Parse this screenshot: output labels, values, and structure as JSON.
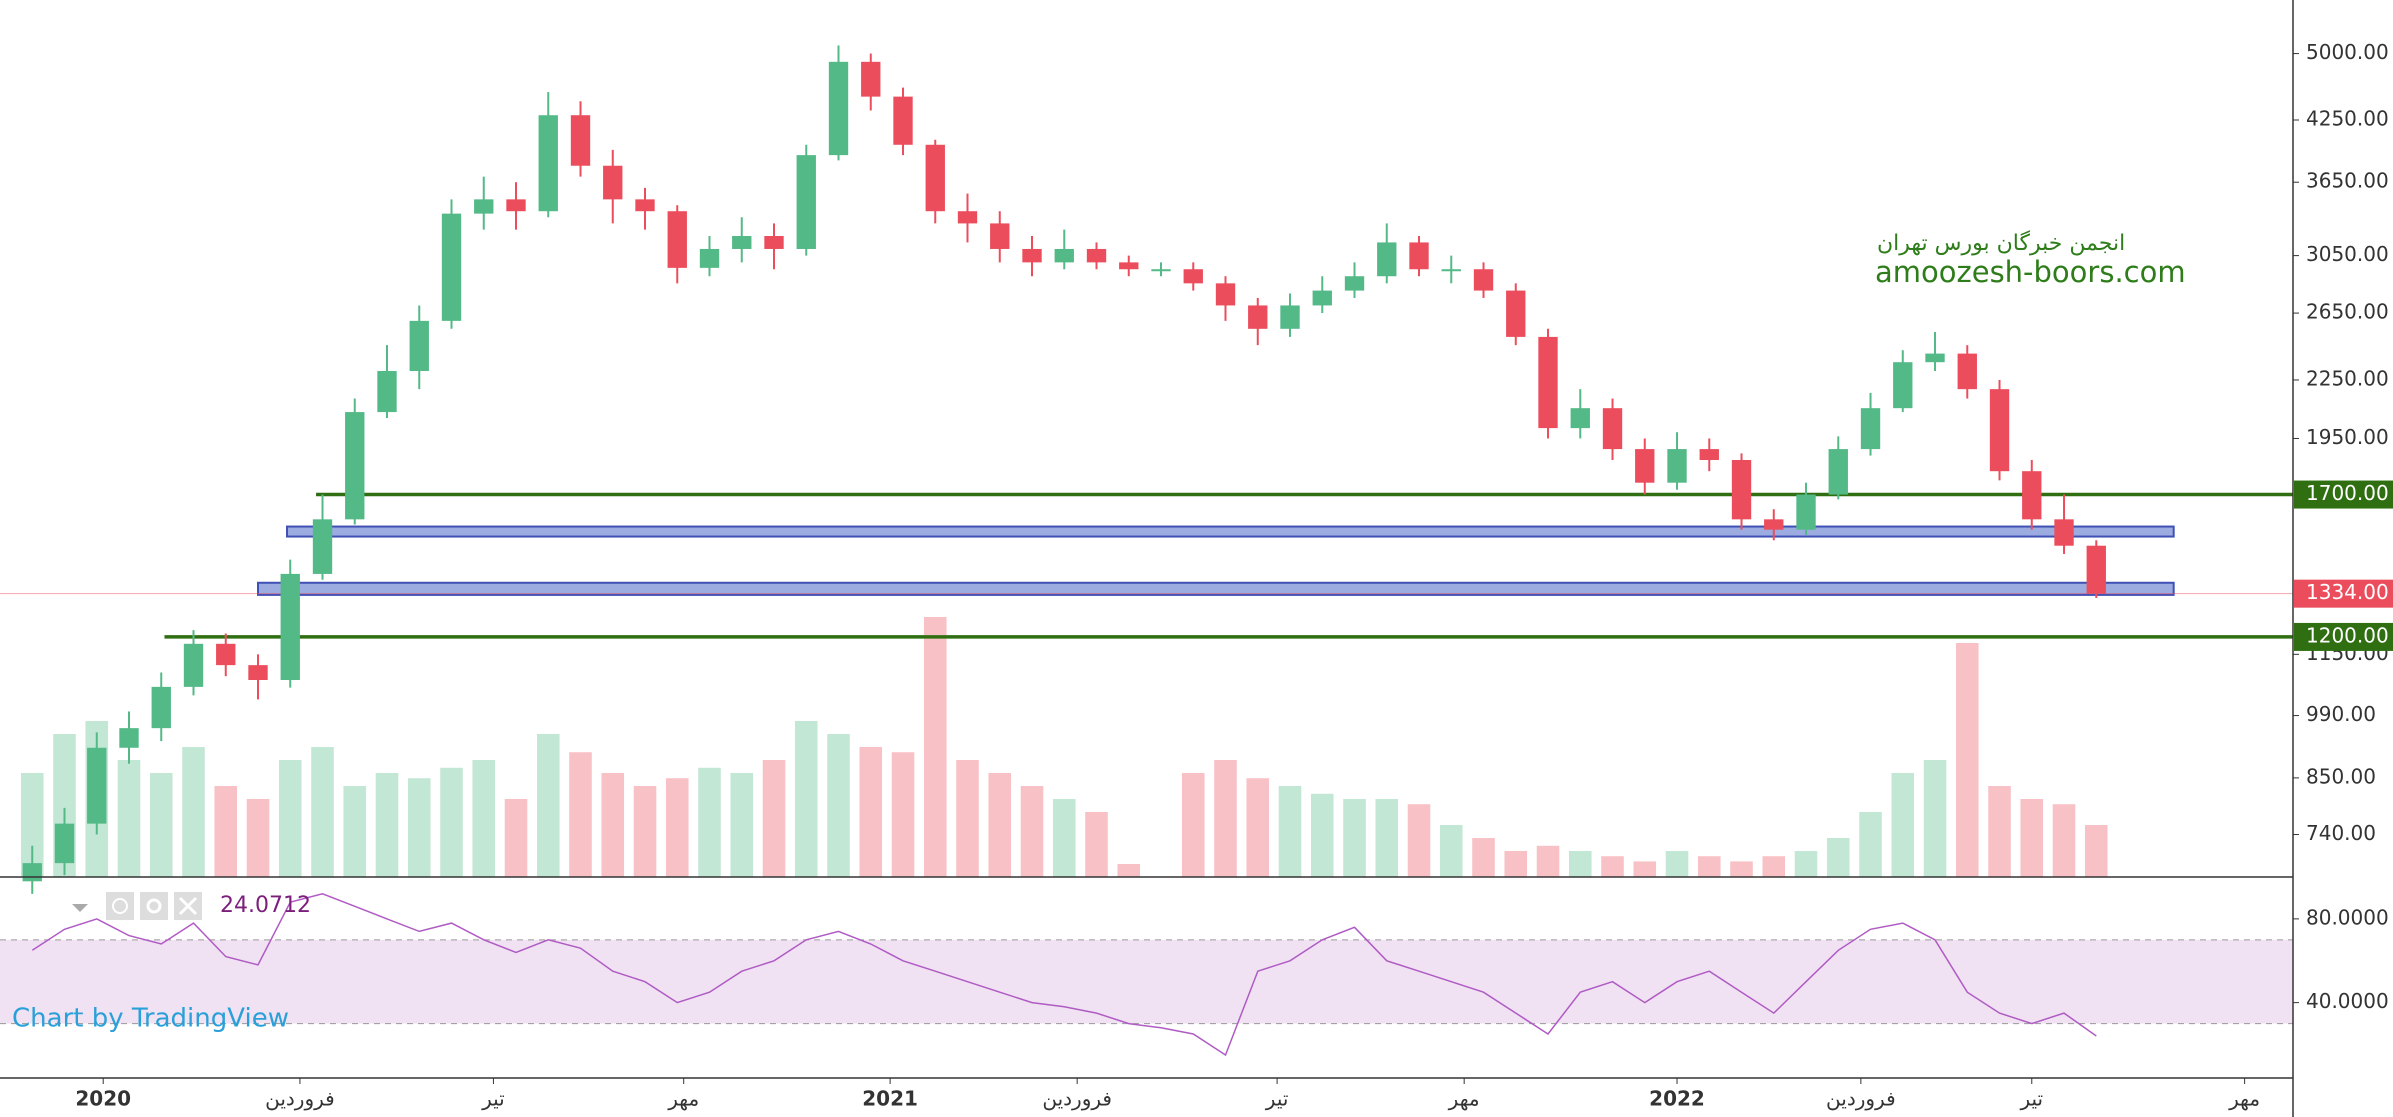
{
  "chart_data": {
    "type": "candlestick",
    "log_scale": true,
    "watermark": [
      "انجمن خبرگان بورس تهران",
      "amoozesh-boors.com"
    ],
    "attribution": "Chart by TradingView",
    "x": [
      0,
      1,
      2,
      3,
      4,
      5,
      6,
      7,
      8,
      9,
      10,
      11,
      12,
      13,
      14,
      15,
      16,
      17,
      18,
      19,
      20,
      21,
      22,
      23,
      24,
      25,
      26,
      27,
      28,
      29,
      30,
      31,
      32,
      33,
      34,
      35,
      36,
      37,
      38,
      39,
      40,
      41,
      42,
      43,
      44,
      45,
      46,
      47,
      48,
      49,
      50,
      51,
      52,
      53,
      54,
      55,
      56,
      57,
      58,
      59,
      60,
      61,
      62,
      63,
      64
    ],
    "open": [
      660,
      690,
      760,
      915,
      960,
      1062,
      1180,
      1120,
      1080,
      1400,
      1600,
      2080,
      2300,
      2600,
      3380,
      3500,
      3400,
      4300,
      3800,
      3500,
      3400,
      2960,
      3100,
      3200,
      3100,
      3900,
      4900,
      4500,
      4000,
      3400,
      3300,
      3100,
      3000,
      3100,
      3000,
      2950,
      2950,
      2850,
      2700,
      2550,
      2700,
      2800,
      2900,
      3150,
      2950,
      2950,
      2800,
      2500,
      2000,
      2100,
      1900,
      1750,
      1900,
      1850,
      1600,
      1560,
      1700,
      1900,
      2100,
      2350,
      2400,
      2200,
      1800,
      1600,
      1500
    ],
    "high": [
      720,
      790,
      950,
      1000,
      1100,
      1220,
      1210,
      1150,
      1450,
      1700,
      2150,
      2450,
      2700,
      3500,
      3700,
      3650,
      4550,
      4450,
      3950,
      3600,
      3450,
      3200,
      3350,
      3300,
      4000,
      5100,
      5000,
      4600,
      4050,
      3550,
      3400,
      3200,
      3250,
      3150,
      3050,
      3000,
      3000,
      2900,
      2750,
      2780,
      2900,
      3000,
      3300,
      3200,
      3050,
      3000,
      2850,
      2550,
      2200,
      2150,
      1950,
      1980,
      1950,
      1880,
      1640,
      1750,
      1960,
      2180,
      2420,
      2530,
      2450,
      2250,
      1850,
      1700,
      1520
    ],
    "low": [
      640,
      670,
      740,
      880,
      930,
      1040,
      1090,
      1030,
      1060,
      1380,
      1580,
      2050,
      2200,
      2550,
      3250,
      3250,
      3350,
      3700,
      3300,
      3250,
      2850,
      2900,
      3000,
      2950,
      3050,
      3850,
      4350,
      3900,
      3300,
      3150,
      3000,
      2900,
      2950,
      2950,
      2900,
      2900,
      2800,
      2600,
      2450,
      2500,
      2650,
      2750,
      2850,
      2900,
      2850,
      2750,
      2450,
      1950,
      1950,
      1850,
      1700,
      1720,
      1800,
      1560,
      1520,
      1540,
      1680,
      1870,
      2080,
      2300,
      2150,
      1760,
      1560,
      1470,
      1320
    ],
    "close": [
      690,
      760,
      915,
      960,
      1062,
      1180,
      1120,
      1080,
      1400,
      1600,
      2080,
      2300,
      2600,
      3380,
      3500,
      3400,
      4300,
      3800,
      3500,
      3400,
      2960,
      3100,
      3200,
      3100,
      3900,
      4900,
      4500,
      4000,
      3400,
      3300,
      3100,
      3000,
      3100,
      3000,
      2950,
      2950,
      2850,
      2700,
      2550,
      2700,
      2800,
      2900,
      3150,
      2950,
      2950,
      2800,
      2500,
      2000,
      2100,
      1900,
      1750,
      1900,
      1850,
      1600,
      1560,
      1700,
      1900,
      2100,
      2350,
      2400,
      2200,
      1800,
      1600,
      1500,
      1334
    ],
    "up_color": "#53b987",
    "down_color": "#eb4d5c",
    "xlim": [
      -1,
      70.1
    ],
    "xticks": [
      {
        "value": 2.2,
        "label": "2020"
      },
      {
        "value": 8.3,
        "label": "فروردین"
      },
      {
        "value": 14.3,
        "label": "تیر"
      },
      {
        "value": 20.2,
        "label": "مهر"
      },
      {
        "value": 26.6,
        "label": "2021"
      },
      {
        "value": 32.4,
        "label": "فروردین"
      },
      {
        "value": 38.6,
        "label": "تیر"
      },
      {
        "value": 44.4,
        "label": "مهر"
      },
      {
        "value": 51.0,
        "label": "2022"
      },
      {
        "value": 56.7,
        "label": "فروردین"
      },
      {
        "value": 62.0,
        "label": "تیر"
      },
      {
        "value": 68.6,
        "label": "مهر"
      }
    ],
    "ylim": [
      667,
      5700
    ],
    "yticks": [
      {
        "value": 5000,
        "label": "5000.00"
      },
      {
        "value": 4250,
        "label": "4250.00"
      },
      {
        "value": 3650,
        "label": "3650.00"
      },
      {
        "value": 3050,
        "label": "3050.00"
      },
      {
        "value": 2650,
        "label": "2650.00"
      },
      {
        "value": 2250,
        "label": "2250.00"
      },
      {
        "value": 1950,
        "label": "1950.00"
      },
      {
        "value": 1150,
        "label": "1150.00"
      },
      {
        "value": 990,
        "label": "990.00"
      },
      {
        "value": 850,
        "label": "850.00"
      },
      {
        "value": 740,
        "label": "740.00"
      }
    ],
    "hlines": [
      {
        "value": 1700,
        "label": "1700.00",
        "from": 8.8,
        "color": "#2f6f12"
      },
      {
        "value": 1200,
        "label": "1200.00",
        "from": 4.1,
        "color": "#2f6f12"
      }
    ],
    "zones": [
      {
        "low": 1534,
        "high": 1572,
        "from": 7.9,
        "to": 66.4,
        "color": "#7b8fd6"
      },
      {
        "low": 1330,
        "high": 1370,
        "from": 7.0,
        "to": 66.4,
        "color": "#7b8fd6"
      }
    ],
    "last_price": {
      "value": 1334,
      "label": "1334.00",
      "color": "#eb4d5c"
    },
    "volume": {
      "values": [
        40,
        55,
        60,
        45,
        40,
        50,
        35,
        30,
        45,
        50,
        35,
        40,
        38,
        42,
        45,
        30,
        55,
        48,
        40,
        35,
        38,
        42,
        40,
        45,
        60,
        55,
        50,
        48,
        100,
        45,
        40,
        35,
        30,
        25,
        5,
        0,
        40,
        45,
        38,
        35,
        32,
        30,
        30,
        28,
        20,
        15,
        10,
        12,
        10,
        8,
        6,
        10,
        8,
        6,
        8,
        10,
        15,
        25,
        40,
        45,
        90,
        35,
        30,
        28,
        20
      ],
      "ylim": [
        0,
        100
      ]
    },
    "rsi": {
      "values": [
        65,
        75,
        80,
        72,
        68,
        78,
        62,
        58,
        88,
        92,
        86,
        80,
        74,
        78,
        70,
        64,
        70,
        66,
        55,
        50,
        40,
        45,
        55,
        60,
        70,
        74,
        68,
        60,
        55,
        50,
        45,
        40,
        38,
        35,
        30,
        28,
        25,
        15,
        55,
        60,
        70,
        76,
        60,
        55,
        50,
        45,
        35,
        25,
        45,
        50,
        40,
        50,
        55,
        45,
        35,
        50,
        65,
        75,
        78,
        70,
        45,
        35,
        30,
        35,
        24.0712
      ],
      "ylim": [
        4,
        100
      ],
      "yticks": [
        {
          "value": 80,
          "label": "80.0000"
        },
        {
          "value": 40,
          "label": "40.0000"
        }
      ],
      "band": [
        30,
        70
      ],
      "color": "#b05bc4"
    }
  }
}
